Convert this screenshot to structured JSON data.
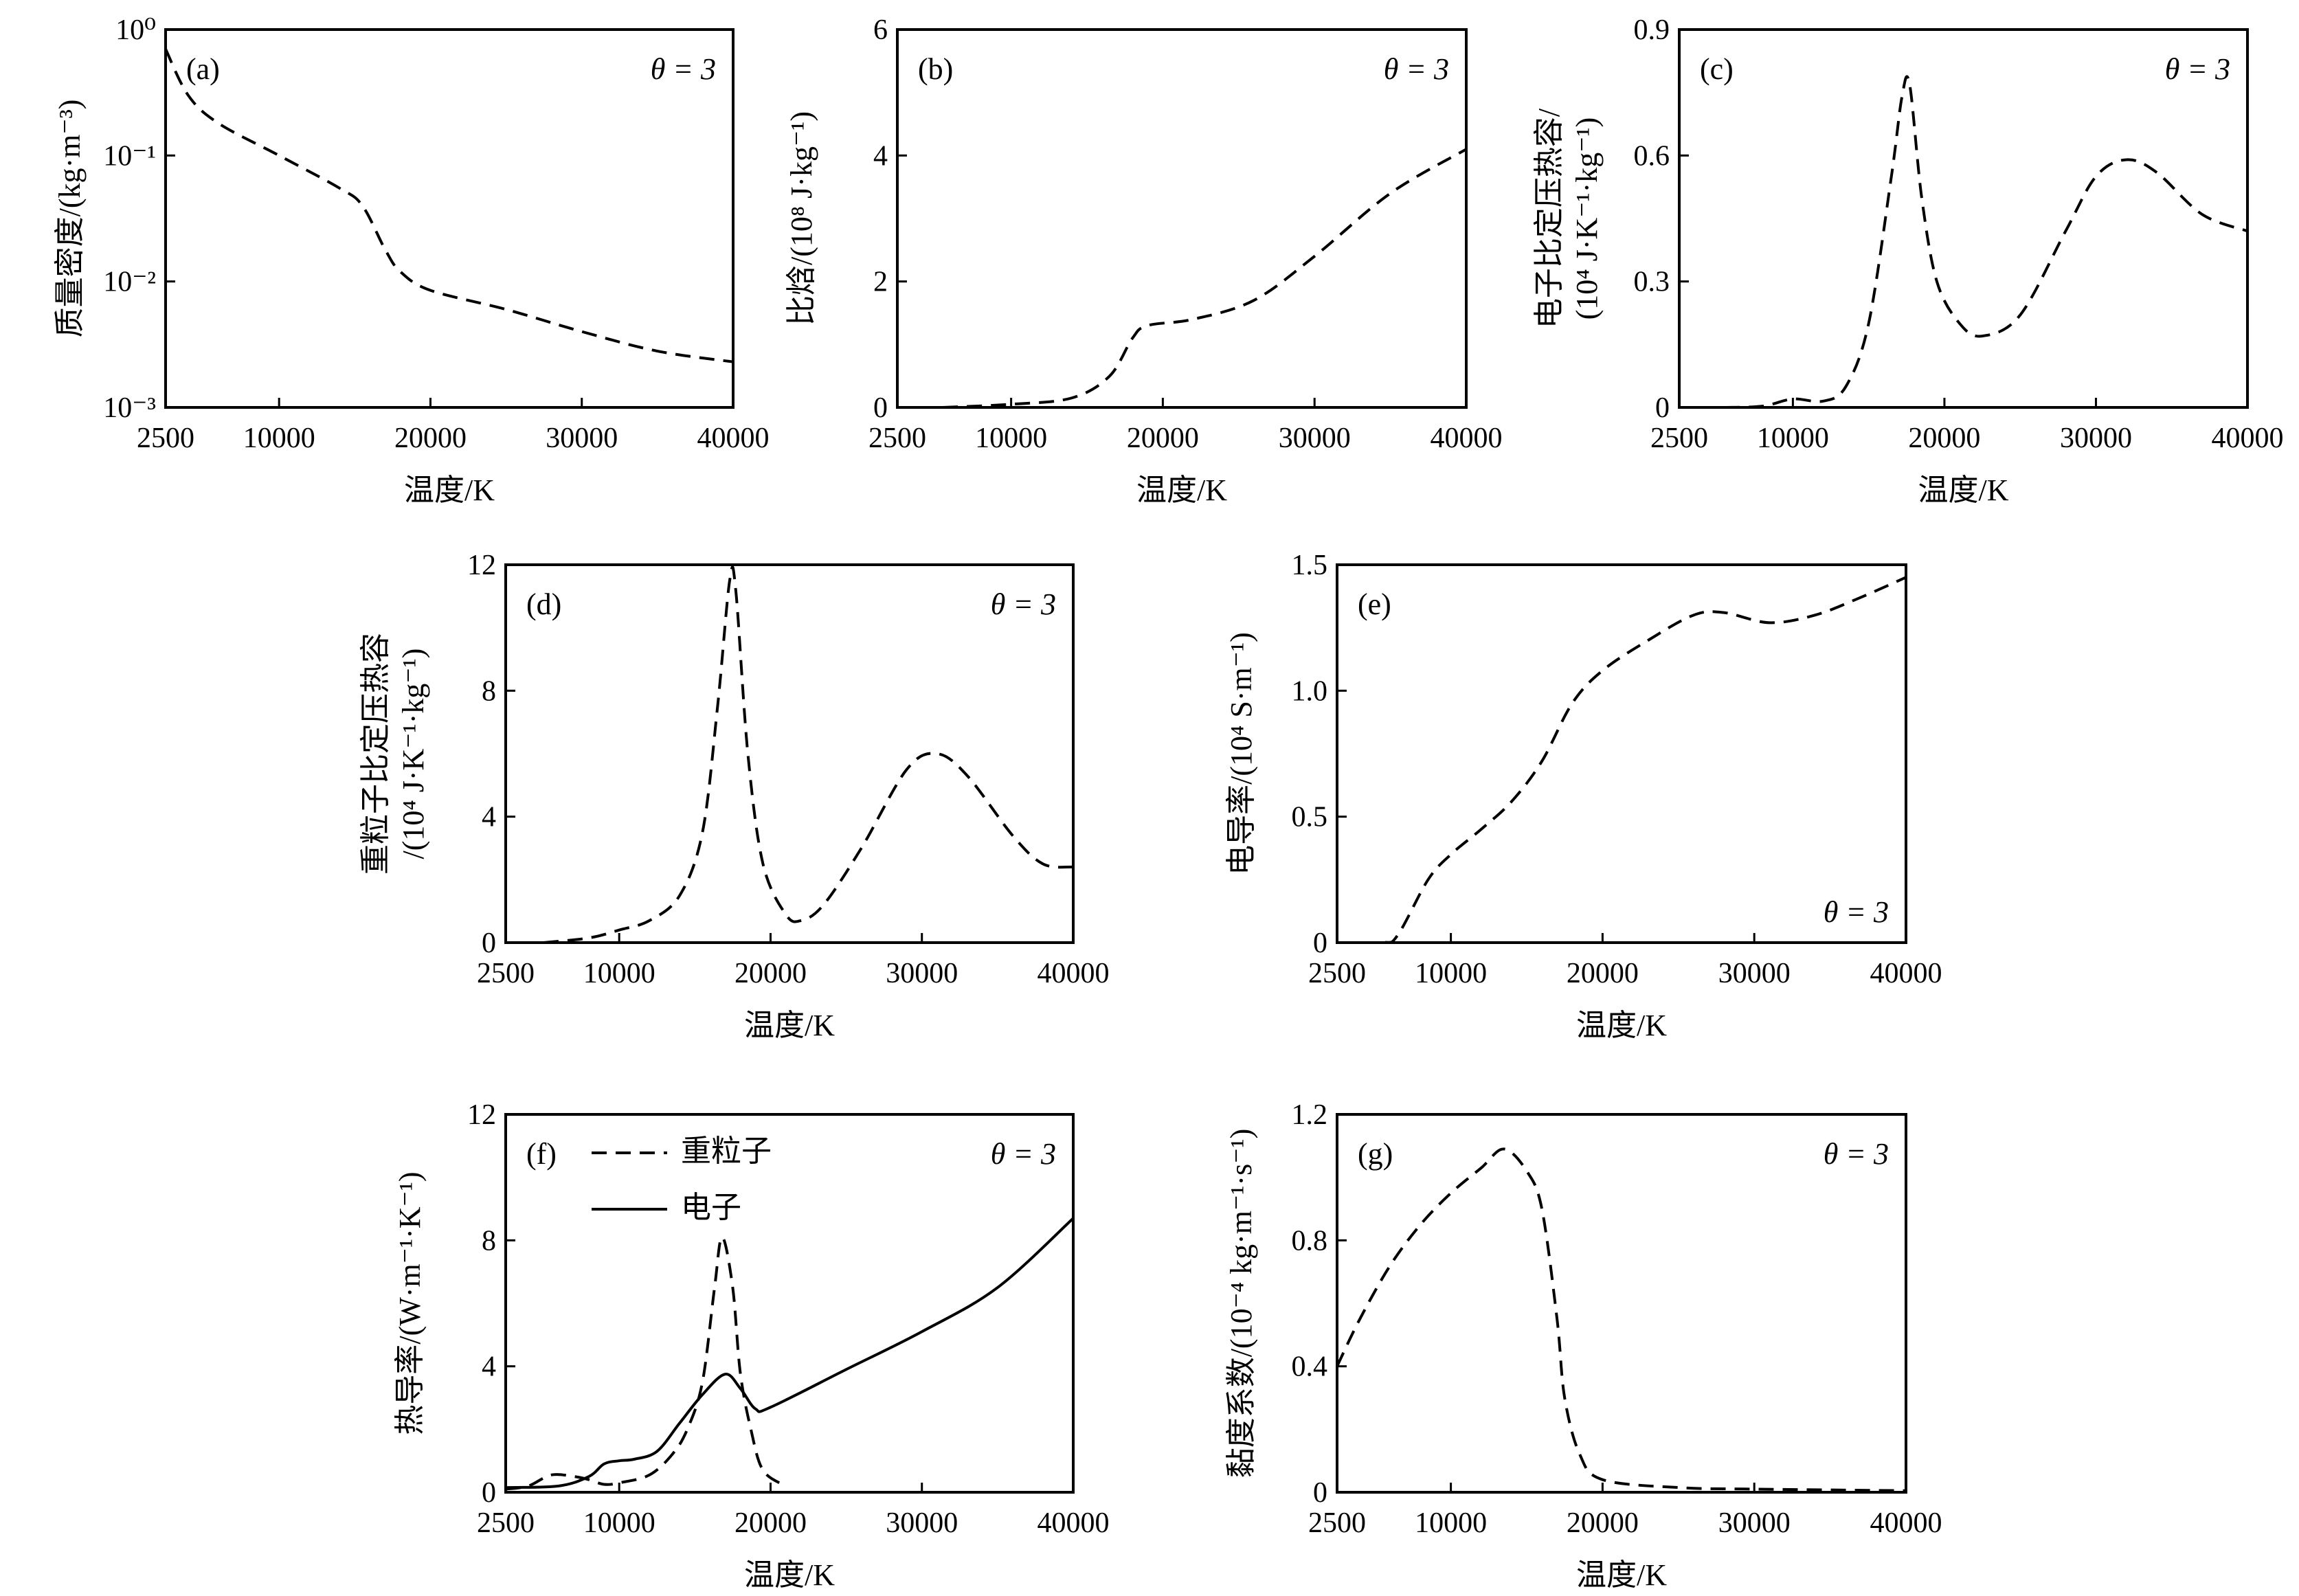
{
  "chart_data": [
    {
      "panel": "(a)",
      "type": "line",
      "annotation": "θ = 3",
      "annotation_position": "top-right",
      "xlabel": "温度/K",
      "ylabel": [
        "质量密度/(kg·m⁻³)"
      ],
      "yscale": "log",
      "ylim": [
        0.001,
        1
      ],
      "xlim": [
        2500,
        40000
      ],
      "xticks": [
        2500,
        10000,
        20000,
        30000,
        40000
      ],
      "xtick_labels": [
        "2500",
        "10000",
        "20000",
        "30000",
        "40000"
      ],
      "yticks": [
        0.001,
        0.01,
        0.1,
        1
      ],
      "ytick_labels": [
        "10⁻³",
        "10⁻²",
        "10⁻¹",
        "10⁰"
      ],
      "series": [
        {
          "style": "dashed",
          "x": [
            2500,
            4000,
            6000,
            10000,
            14000,
            15500,
            17000,
            18000,
            20000,
            25000,
            30000,
            35000,
            40000
          ],
          "y": [
            0.7,
            0.3,
            0.18,
            0.1,
            0.055,
            0.04,
            0.018,
            0.012,
            0.0085,
            0.006,
            0.004,
            0.0028,
            0.0023
          ]
        }
      ]
    },
    {
      "panel": "(b)",
      "type": "line",
      "annotation": "θ = 3",
      "annotation_position": "top-right",
      "xlabel": "温度/K",
      "ylabel": [
        "比焓/(10⁸ J·kg⁻¹)"
      ],
      "yscale": "linear",
      "ylim": [
        0,
        6
      ],
      "xlim": [
        2500,
        40000
      ],
      "xticks": [
        2500,
        10000,
        20000,
        30000,
        40000
      ],
      "xtick_labels": [
        "2500",
        "10000",
        "20000",
        "30000",
        "40000"
      ],
      "yticks": [
        0,
        2,
        4,
        6
      ],
      "ytick_labels": [
        "0",
        "2",
        "4",
        "6"
      ],
      "series": [
        {
          "style": "dashed",
          "x": [
            5500,
            10000,
            14000,
            16500,
            18000,
            19000,
            22000,
            26000,
            30000,
            35000,
            40000
          ],
          "y": [
            0,
            0.05,
            0.15,
            0.5,
            1.1,
            1.3,
            1.4,
            1.7,
            2.4,
            3.4,
            4.1
          ]
        }
      ]
    },
    {
      "panel": "(c)",
      "type": "line",
      "annotation": "θ = 3",
      "annotation_position": "top-right",
      "xlabel": "温度/K",
      "ylabel": [
        "电子比定压热容/",
        "(10⁴ J·K⁻¹·kg⁻¹)"
      ],
      "yscale": "linear",
      "ylim": [
        0,
        0.9
      ],
      "xlim": [
        2500,
        40000
      ],
      "xticks": [
        2500,
        10000,
        20000,
        30000,
        40000
      ],
      "xtick_labels": [
        "2500",
        "10000",
        "20000",
        "30000",
        "40000"
      ],
      "yticks": [
        0,
        0.3,
        0.6,
        0.9
      ],
      "ytick_labels": [
        "0",
        "0.3",
        "0.6",
        "0.9"
      ],
      "series": [
        {
          "style": "dashed",
          "x": [
            5500,
            8000,
            10000,
            12000,
            13500,
            15000,
            16500,
            17200,
            17700,
            18500,
            19500,
            21000,
            22500,
            25000,
            28000,
            30000,
            32000,
            34000,
            37000,
            40000
          ],
          "y": [
            0,
            0.003,
            0.02,
            0.015,
            0.05,
            0.2,
            0.55,
            0.74,
            0.77,
            0.5,
            0.3,
            0.2,
            0.17,
            0.22,
            0.42,
            0.55,
            0.59,
            0.56,
            0.46,
            0.42
          ]
        }
      ]
    },
    {
      "panel": "(d)",
      "type": "line",
      "annotation": "θ = 3",
      "annotation_position": "top-right",
      "xlabel": "温度/K",
      "ylabel": [
        "重粒子比定压热容",
        "/(10⁴ J·K⁻¹·kg⁻¹)"
      ],
      "yscale": "linear",
      "ylim": [
        0,
        12
      ],
      "xlim": [
        2500,
        40000
      ],
      "xticks": [
        2500,
        10000,
        20000,
        30000,
        40000
      ],
      "xtick_labels": [
        "2500",
        "10000",
        "20000",
        "30000",
        "40000"
      ],
      "yticks": [
        0,
        4,
        8,
        12
      ],
      "ytick_labels": [
        "0",
        "4",
        "8",
        "12"
      ],
      "series": [
        {
          "style": "dashed",
          "x": [
            5000,
            8000,
            10000,
            12000,
            14000,
            15500,
            16500,
            17300,
            17700,
            18500,
            19500,
            21000,
            22000,
            23500,
            26000,
            29000,
            31000,
            33000,
            36000,
            38000,
            40000
          ],
          "y": [
            0,
            0.15,
            0.4,
            0.7,
            1.5,
            3.5,
            7.5,
            11.5,
            11.2,
            6,
            2.5,
            0.9,
            0.7,
            1.2,
            3,
            5.5,
            6,
            5.3,
            3.4,
            2.5,
            2.4
          ]
        }
      ]
    },
    {
      "panel": "(e)",
      "type": "line",
      "annotation": "θ = 3",
      "annotation_position": "bottom-right",
      "xlabel": "温度/K",
      "ylabel": [
        "电导率/(10⁴ S·m⁻¹)"
      ],
      "yscale": "linear",
      "ylim": [
        0,
        1.5
      ],
      "xlim": [
        2500,
        40000
      ],
      "xticks": [
        2500,
        10000,
        20000,
        30000,
        40000
      ],
      "xtick_labels": [
        "2500",
        "10000",
        "20000",
        "30000",
        "40000"
      ],
      "yticks": [
        0,
        0.5,
        1.0,
        1.5
      ],
      "ytick_labels": [
        "0",
        "0.5",
        "1.0",
        "1.5"
      ],
      "series": [
        {
          "style": "dashed",
          "x": [
            2500,
            5500,
            6500,
            8500,
            10000,
            12000,
            14000,
            16000,
            18000,
            20000,
            23000,
            26000,
            28000,
            31000,
            34000,
            37000,
            40000
          ],
          "y": [
            0,
            0,
            0.03,
            0.25,
            0.35,
            0.45,
            0.56,
            0.72,
            0.95,
            1.08,
            1.2,
            1.3,
            1.31,
            1.27,
            1.3,
            1.37,
            1.45
          ]
        }
      ]
    },
    {
      "panel": "(f)",
      "type": "line",
      "annotation": "θ = 3",
      "annotation_position": "top-right",
      "xlabel": "温度/K",
      "ylabel": [
        "热导率/(W·m⁻¹·K⁻¹)"
      ],
      "yscale": "linear",
      "ylim": [
        0,
        12
      ],
      "xlim": [
        2500,
        40000
      ],
      "xticks": [
        2500,
        10000,
        20000,
        30000,
        40000
      ],
      "xtick_labels": [
        "2500",
        "10000",
        "20000",
        "30000",
        "40000"
      ],
      "yticks": [
        0,
        4,
        8,
        12
      ],
      "ytick_labels": [
        "0",
        "4",
        "8",
        "12"
      ],
      "legend": "top-left",
      "series": [
        {
          "name": "重粒子",
          "style": "dashed",
          "x": [
            2500,
            4000,
            5500,
            7000,
            8000,
            9000,
            10000,
            12000,
            13500,
            14500,
            15500,
            16300,
            16800,
            17500,
            18000,
            18700,
            19500,
            21000
          ],
          "y": [
            0.1,
            0.2,
            0.55,
            0.5,
            0.4,
            0.25,
            0.3,
            0.55,
            1.2,
            2,
            3.5,
            6.5,
            8.1,
            6.5,
            3.8,
            2,
            0.7,
            0.2
          ]
        },
        {
          "name": "电子",
          "style": "solid",
          "x": [
            2500,
            6000,
            8000,
            9000,
            10000,
            11000,
            12500,
            14000,
            15500,
            17000,
            18000,
            19000,
            20000,
            25000,
            30000,
            35000,
            40000
          ],
          "y": [
            0.15,
            0.2,
            0.5,
            0.9,
            1.0,
            1.05,
            1.3,
            2.2,
            3.1,
            3.75,
            3.3,
            2.65,
            2.7,
            3.9,
            5.1,
            6.5,
            8.7
          ]
        }
      ]
    },
    {
      "panel": "(g)",
      "type": "line",
      "annotation": "θ = 3",
      "annotation_position": "top-right",
      "xlabel": "温度/K",
      "ylabel": [
        "黏度系数/(10⁻⁴ kg·m⁻¹·s⁻¹)"
      ],
      "yscale": "linear",
      "ylim": [
        0,
        1.2
      ],
      "xlim": [
        2500,
        40000
      ],
      "xticks": [
        2500,
        10000,
        20000,
        30000,
        40000
      ],
      "xtick_labels": [
        "2500",
        "10000",
        "20000",
        "30000",
        "40000"
      ],
      "yticks": [
        0,
        0.4,
        0.8,
        1.2
      ],
      "ytick_labels": [
        "0",
        "0.4",
        "0.8",
        "1.2"
      ],
      "series": [
        {
          "style": "dashed",
          "x": [
            2500,
            4000,
            6000,
            8000,
            10000,
            12000,
            13500,
            15000,
            16000,
            17000,
            17500,
            18500,
            20000,
            25000,
            30000,
            40000
          ],
          "y": [
            0.4,
            0.55,
            0.72,
            0.85,
            0.95,
            1.03,
            1.09,
            1.02,
            0.9,
            0.55,
            0.3,
            0.12,
            0.04,
            0.015,
            0.01,
            0.005
          ]
        }
      ]
    }
  ]
}
